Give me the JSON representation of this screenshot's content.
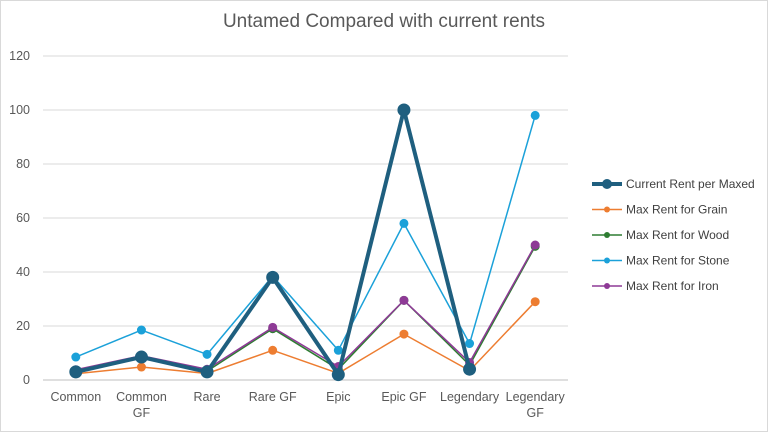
{
  "chart_data": {
    "type": "line",
    "title": "Untamed Compared with current rents",
    "xlabel": "",
    "ylabel": "",
    "ylim": [
      0,
      120
    ],
    "yticks": [
      0,
      20,
      40,
      60,
      80,
      100,
      120
    ],
    "grid": "horizontal",
    "legend_position": "right",
    "categories": [
      "Common",
      "Common GF",
      "Rare",
      "Rare GF",
      "Epic",
      "Epic GF",
      "Legendary",
      "Legendary GF"
    ],
    "category_lines": [
      [
        "Common"
      ],
      [
        "Common",
        "GF"
      ],
      [
        "Rare"
      ],
      [
        "Rare GF"
      ],
      [
        "Epic"
      ],
      [
        "Epic GF"
      ],
      [
        "Legendary"
      ],
      [
        "Legendary",
        "GF"
      ]
    ],
    "series": [
      {
        "name": "Current Rent per Maxed",
        "color": "#1f5f7f",
        "width": 4,
        "marker": 6,
        "values": [
          3,
          8.5,
          3,
          38,
          2,
          100,
          4,
          null
        ]
      },
      {
        "name": "Max Rent for Grain",
        "color": "#ed7d31",
        "width": 1.5,
        "marker": 4,
        "values": [
          2.3,
          4.8,
          2.4,
          11,
          2.5,
          17,
          3.5,
          29
        ]
      },
      {
        "name": "Max Rent for Wood",
        "color": "#2e7d32",
        "width": 1.5,
        "marker": 4,
        "values": [
          3.2,
          8.3,
          3.3,
          19,
          4,
          29.5,
          5.5,
          49.5
        ]
      },
      {
        "name": "Max Rent for Stone",
        "color": "#1ba1d9",
        "width": 1.5,
        "marker": 4,
        "values": [
          8.5,
          18.5,
          9.5,
          38.5,
          11,
          58,
          13.5,
          98
        ]
      },
      {
        "name": "Max Rent for Iron",
        "color": "#8e3a96",
        "width": 1.5,
        "marker": 4,
        "values": [
          3.8,
          9,
          4,
          19.5,
          5,
          29.5,
          6.5,
          50
        ]
      }
    ]
  }
}
